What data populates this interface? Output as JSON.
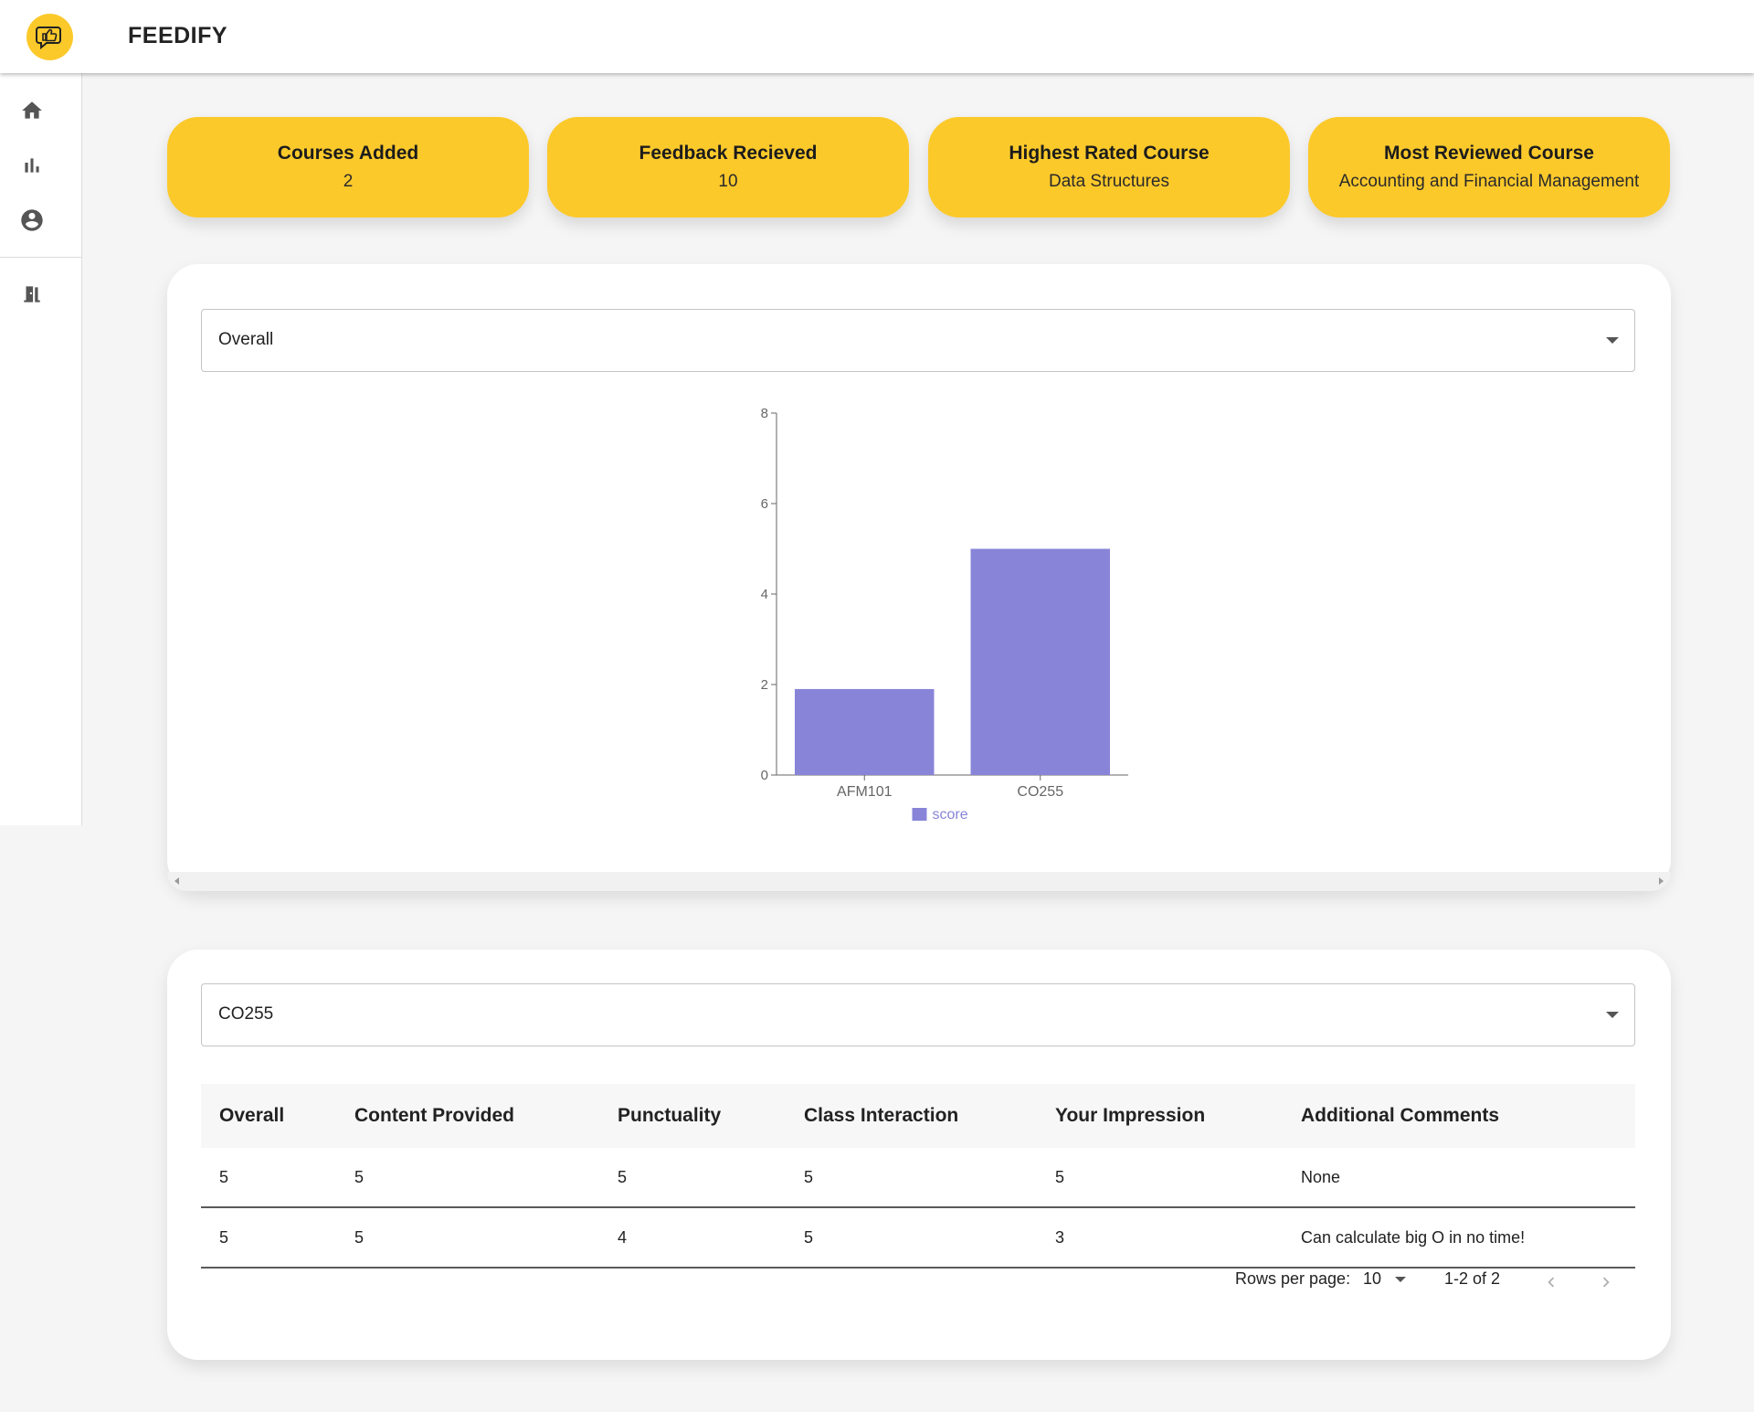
{
  "app": {
    "title": "FEEDIFY",
    "logo_icon": "thumbs-up-chat-icon"
  },
  "sidebar": {
    "items": [
      {
        "icon": "home-icon"
      },
      {
        "icon": "bar-chart-icon"
      },
      {
        "icon": "account-circle-icon"
      },
      {
        "icon": "exit-door-icon"
      }
    ]
  },
  "stats": [
    {
      "title": "Courses Added",
      "value": "2"
    },
    {
      "title": "Feedback Recieved",
      "value": "10"
    },
    {
      "title": "Highest Rated Course",
      "value": "Data Structures"
    },
    {
      "title": "Most Reviewed Course",
      "value": "Accounting and Financial Management"
    }
  ],
  "chart_panel": {
    "select_value": "Overall"
  },
  "chart_data": {
    "type": "bar",
    "categories": [
      "AFM101",
      "CO255"
    ],
    "series": [
      {
        "name": "score",
        "values": [
          1.9,
          5
        ]
      }
    ],
    "ylim": [
      0,
      8
    ],
    "yticks": [
      "0",
      "2",
      "4",
      "6",
      "8"
    ],
    "legend_position": "bottom",
    "color": "#8884d8",
    "grid": false
  },
  "table_panel": {
    "select_value": "CO255",
    "columns": [
      "Overall",
      "Content Provided",
      "Punctuality",
      "Class Interaction",
      "Your Impression",
      "Additional Comments"
    ],
    "rows": [
      [
        "5",
        "5",
        "5",
        "5",
        "5",
        "None"
      ],
      [
        "5",
        "5",
        "4",
        "5",
        "3",
        "Can calculate big O in no time!"
      ]
    ],
    "pagination": {
      "rows_per_page_label": "Rows per page:",
      "rows_per_page_value": "10",
      "range_label": "1-2 of 2"
    }
  },
  "colors": {
    "accent": "#fcc92b",
    "bar": "#8884d8"
  }
}
